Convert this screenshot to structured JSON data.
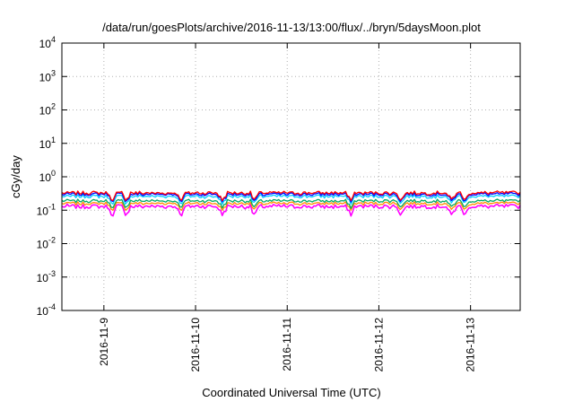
{
  "chart_data": {
    "type": "line",
    "title": "/data/run/goesPlots/archive/2016-11-13/13:00/flux/../bryn/5daysMoon.plot",
    "xlabel": "Coordinated Universal Time (UTC)",
    "ylabel": "cGy/day",
    "y_scale": "log",
    "ylim": [
      0.0001,
      10000
    ],
    "y_ticks": [
      {
        "base": "10",
        "exp": "-4",
        "value": 0.0001
      },
      {
        "base": "10",
        "exp": "-3",
        "value": 0.001
      },
      {
        "base": "10",
        "exp": "-2",
        "value": 0.01
      },
      {
        "base": "10",
        "exp": "-1",
        "value": 0.1
      },
      {
        "base": "10",
        "exp": "0",
        "value": 1
      },
      {
        "base": "10",
        "exp": "1",
        "value": 10
      },
      {
        "base": "10",
        "exp": "2",
        "value": 100
      },
      {
        "base": "10",
        "exp": "3",
        "value": 1000
      },
      {
        "base": "10",
        "exp": "4",
        "value": 10000
      }
    ],
    "xlim": [
      "2016-11-08T13:00",
      "2016-11-13T13:00"
    ],
    "x_ticks": [
      {
        "label": "2016-11-9",
        "date": "2016-11-09T00:00"
      },
      {
        "label": "2016-11-10",
        "date": "2016-11-10T00:00"
      },
      {
        "label": "2016-11-11",
        "date": "2016-11-11T00:00"
      },
      {
        "label": "2016-11-12",
        "date": "2016-11-12T00:00"
      },
      {
        "label": "2016-11-13",
        "date": "2016-11-13T00:00"
      }
    ],
    "grid": true,
    "series": [
      {
        "color": "#ff0000",
        "approx_level": 0.33
      },
      {
        "color": "#0000ff",
        "approx_level": 0.3
      },
      {
        "color": "#00ccff",
        "approx_level": 0.26
      },
      {
        "color": "#00aa66",
        "approx_level": 0.19
      },
      {
        "color": "#ff8c00",
        "approx_level": 0.16
      },
      {
        "color": "#ff00ff",
        "approx_level": 0.13
      }
    ]
  }
}
